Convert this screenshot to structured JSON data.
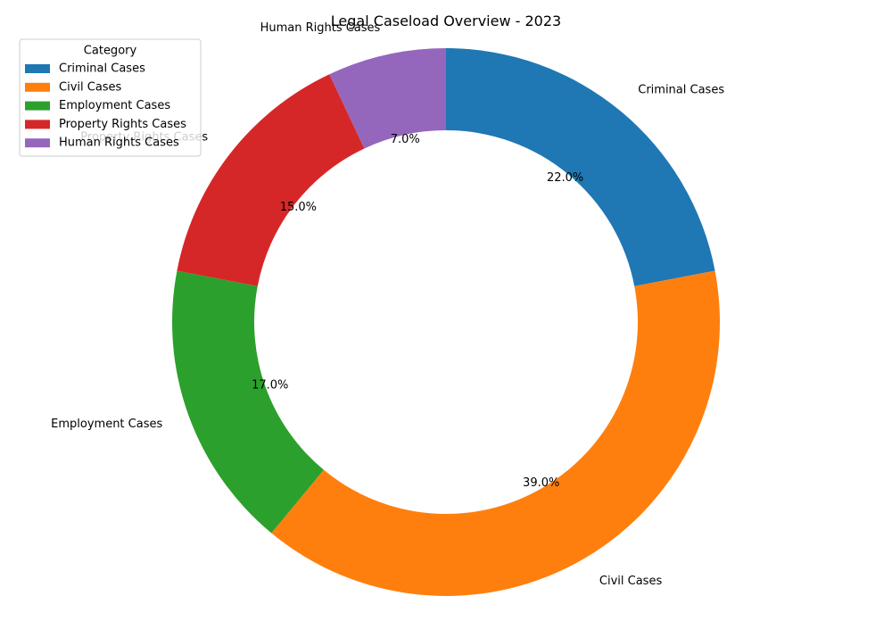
{
  "chart_data": {
    "type": "donut",
    "title": "Legal Caseload Overview - 2023",
    "categories": [
      "Criminal Cases",
      "Civil Cases",
      "Employment Cases",
      "Property Rights Cases",
      "Human Rights Cases"
    ],
    "values": [
      22.0,
      39.0,
      17.0,
      15.0,
      7.0
    ],
    "value_labels": [
      "22.0%",
      "39.0%",
      "17.0%",
      "15.0%",
      "7.0%"
    ],
    "colors": [
      "#1f77b4",
      "#ff7f0e",
      "#2ca02c",
      "#d62728",
      "#9467bd"
    ],
    "start_angle_deg": 90,
    "direction": "clockwise",
    "legend": {
      "title": "Category",
      "placement": "top-left"
    }
  }
}
